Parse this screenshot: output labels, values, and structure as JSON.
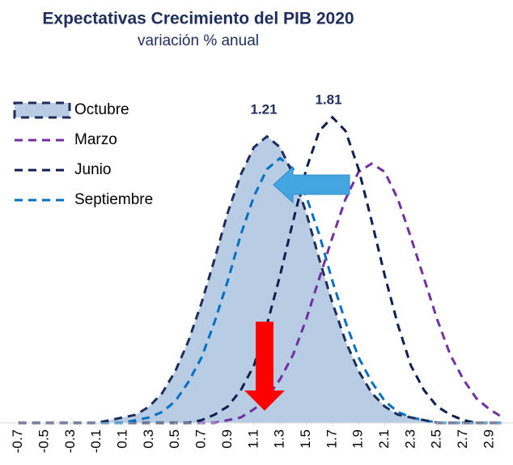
{
  "chart_data": {
    "type": "area",
    "title": "Expectativas Crecimiento del PIB 2020",
    "subtitle": "variación % anual",
    "annotations": [
      "1.21",
      "1.81"
    ],
    "x": [
      -0.7,
      -0.6,
      -0.5,
      -0.4,
      -0.3,
      -0.2,
      -0.1,
      0.0,
      0.1,
      0.2,
      0.3,
      0.4,
      0.5,
      0.6,
      0.7,
      0.8,
      0.9,
      1.0,
      1.1,
      1.2,
      1.3,
      1.4,
      1.5,
      1.6,
      1.7,
      1.8,
      1.9,
      2.0,
      2.1,
      2.2,
      2.3,
      2.4,
      2.5,
      2.6,
      2.7,
      2.8,
      2.9,
      3.0
    ],
    "series": [
      {
        "name": "Octubre",
        "color": "#1f2d5c",
        "fill": "#b8cce4",
        "filled": true,
        "values": [
          0,
          0,
          0,
          0,
          0,
          0,
          0,
          0.01,
          0.02,
          0.03,
          0.06,
          0.11,
          0.19,
          0.3,
          0.44,
          0.6,
          0.77,
          0.91,
          1.01,
          1.05,
          1.01,
          0.91,
          0.77,
          0.6,
          0.44,
          0.3,
          0.19,
          0.11,
          0.06,
          0.03,
          0.02,
          0.01,
          0,
          0,
          0,
          0,
          0,
          0
        ]
      },
      {
        "name": "Marzo",
        "color": "#7030a0",
        "values": [
          0,
          0,
          0,
          0,
          0,
          0,
          0,
          0,
          0,
          0,
          0,
          0,
          0,
          0,
          0,
          0,
          0.01,
          0.02,
          0.05,
          0.09,
          0.16,
          0.25,
          0.38,
          0.53,
          0.68,
          0.82,
          0.92,
          0.95,
          0.92,
          0.82,
          0.68,
          0.53,
          0.38,
          0.25,
          0.16,
          0.09,
          0.05,
          0.02
        ]
      },
      {
        "name": "Junio",
        "color": "#0d1f4f",
        "values": [
          0,
          0,
          0,
          0,
          0,
          0,
          0,
          0,
          0,
          0,
          0,
          0,
          0,
          0,
          0.01,
          0.03,
          0.06,
          0.12,
          0.21,
          0.36,
          0.54,
          0.74,
          0.93,
          1.07,
          1.12,
          1.07,
          0.93,
          0.74,
          0.54,
          0.36,
          0.21,
          0.12,
          0.06,
          0.03,
          0.01,
          0,
          0,
          0
        ]
      },
      {
        "name": "Septiembre",
        "color": "#0070c0",
        "values": [
          0,
          0,
          0,
          0,
          0,
          0,
          0,
          0,
          0,
          0.01,
          0.02,
          0.04,
          0.08,
          0.15,
          0.24,
          0.37,
          0.52,
          0.69,
          0.83,
          0.93,
          0.97,
          0.93,
          0.83,
          0.69,
          0.52,
          0.37,
          0.24,
          0.15,
          0.08,
          0.04,
          0.02,
          0.01,
          0,
          0,
          0,
          0,
          0,
          0
        ]
      }
    ],
    "xlim": [
      -0.84,
      3.08
    ],
    "ylim": [
      0,
      1.25
    ],
    "xticks": [
      -0.7,
      -0.5,
      -0.3,
      -0.1,
      0.1,
      0.3,
      0.5,
      0.7,
      0.9,
      1.1,
      1.3,
      1.5,
      1.7,
      1.9,
      2.1,
      2.3,
      2.5,
      2.7,
      2.9
    ],
    "legend": "upper left"
  }
}
